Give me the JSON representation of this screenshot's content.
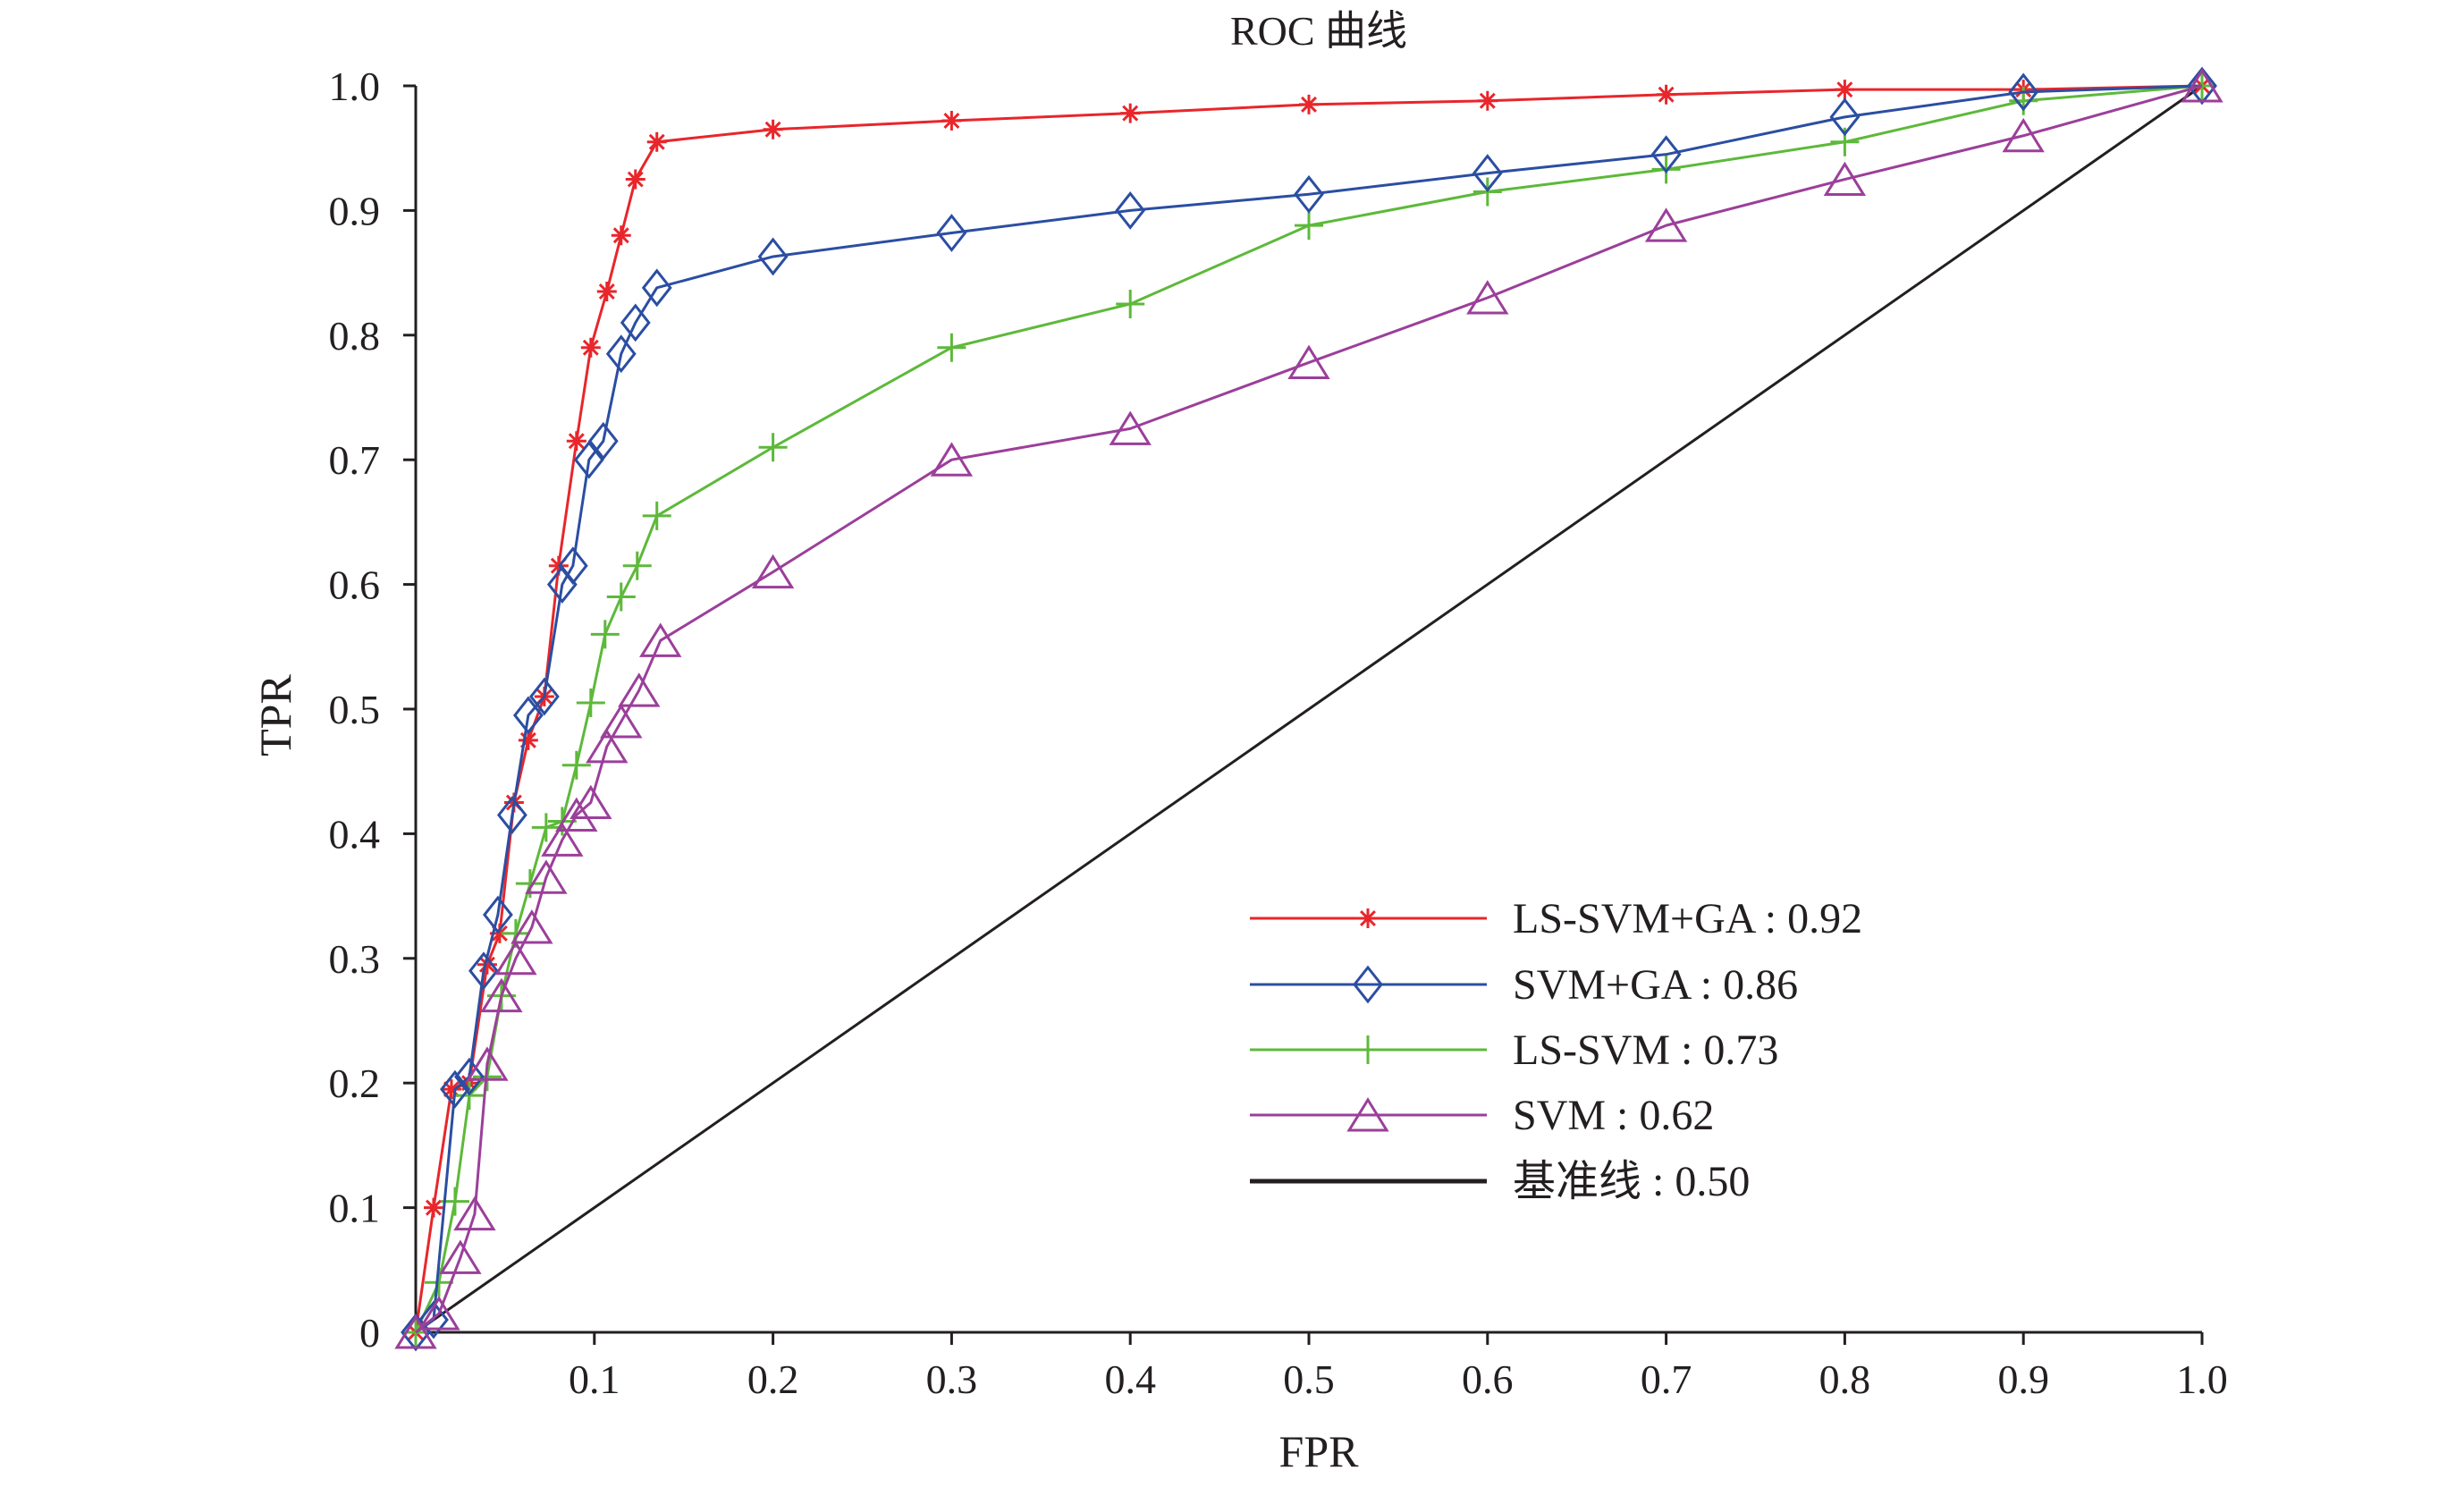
{
  "chart_data": {
    "type": "line",
    "title": "ROC 曲线",
    "xlabel": "FPR",
    "ylabel": "TPR",
    "xlim": [
      0,
      1
    ],
    "ylim": [
      0,
      1
    ],
    "x_ticks": [
      "0.1",
      "0.2",
      "0.3",
      "0.4",
      "0.5",
      "0.6",
      "0.7",
      "0.8",
      "0.9",
      "1.0"
    ],
    "y_ticks": [
      "0",
      "0.1",
      "0.2",
      "0.3",
      "0.4",
      "0.5",
      "0.6",
      "0.7",
      "0.8",
      "0.9",
      "1.0"
    ],
    "grid": false,
    "legend_position": "bottom-right",
    "series": [
      {
        "name": "LS-SVM+GA : 0.92",
        "color": "#e8262b",
        "marker": "asterisk",
        "points": [
          [
            0.0,
            0.0
          ],
          [
            0.01,
            0.1
          ],
          [
            0.02,
            0.195
          ],
          [
            0.03,
            0.2
          ],
          [
            0.04,
            0.295
          ],
          [
            0.047,
            0.32
          ],
          [
            0.055,
            0.425
          ],
          [
            0.063,
            0.475
          ],
          [
            0.072,
            0.51
          ],
          [
            0.08,
            0.615
          ],
          [
            0.09,
            0.715
          ],
          [
            0.098,
            0.79
          ],
          [
            0.107,
            0.835
          ],
          [
            0.115,
            0.88
          ],
          [
            0.123,
            0.925
          ],
          [
            0.135,
            0.955
          ],
          [
            0.2,
            0.965
          ],
          [
            0.3,
            0.972
          ],
          [
            0.4,
            0.978
          ],
          [
            0.5,
            0.985
          ],
          [
            0.6,
            0.988
          ],
          [
            0.7,
            0.993
          ],
          [
            0.8,
            0.997
          ],
          [
            0.9,
            0.997
          ],
          [
            1.0,
            1.0
          ]
        ]
      },
      {
        "name": "SVM+GA : 0.86",
        "color": "#2b4ea2",
        "marker": "diamond",
        "points": [
          [
            0.0,
            0.0
          ],
          [
            0.01,
            0.01
          ],
          [
            0.022,
            0.195
          ],
          [
            0.03,
            0.205
          ],
          [
            0.038,
            0.29
          ],
          [
            0.046,
            0.335
          ],
          [
            0.054,
            0.415
          ],
          [
            0.063,
            0.495
          ],
          [
            0.072,
            0.51
          ],
          [
            0.082,
            0.6
          ],
          [
            0.088,
            0.615
          ],
          [
            0.097,
            0.7
          ],
          [
            0.105,
            0.715
          ],
          [
            0.115,
            0.785
          ],
          [
            0.123,
            0.81
          ],
          [
            0.135,
            0.838
          ],
          [
            0.2,
            0.863
          ],
          [
            0.3,
            0.882
          ],
          [
            0.4,
            0.9
          ],
          [
            0.5,
            0.913
          ],
          [
            0.6,
            0.93
          ],
          [
            0.7,
            0.945
          ],
          [
            0.8,
            0.975
          ],
          [
            0.9,
            0.995
          ],
          [
            1.0,
            1.0
          ]
        ]
      },
      {
        "name": "LS-SVM : 0.73",
        "color": "#5db93a",
        "marker": "plus",
        "points": [
          [
            0.0,
            0.0
          ],
          [
            0.013,
            0.04
          ],
          [
            0.022,
            0.105
          ],
          [
            0.03,
            0.19
          ],
          [
            0.04,
            0.205
          ],
          [
            0.048,
            0.27
          ],
          [
            0.056,
            0.32
          ],
          [
            0.064,
            0.36
          ],
          [
            0.073,
            0.405
          ],
          [
            0.082,
            0.41
          ],
          [
            0.09,
            0.455
          ],
          [
            0.098,
            0.505
          ],
          [
            0.106,
            0.56
          ],
          [
            0.115,
            0.59
          ],
          [
            0.124,
            0.615
          ],
          [
            0.135,
            0.655
          ],
          [
            0.2,
            0.71
          ],
          [
            0.3,
            0.79
          ],
          [
            0.4,
            0.825
          ],
          [
            0.5,
            0.888
          ],
          [
            0.6,
            0.915
          ],
          [
            0.7,
            0.933
          ],
          [
            0.8,
            0.955
          ],
          [
            0.9,
            0.988
          ],
          [
            1.0,
            1.0
          ]
        ]
      },
      {
        "name": "SVM : 0.62",
        "color": "#9b3f9a",
        "marker": "triangle",
        "points": [
          [
            0.0,
            0.0
          ],
          [
            0.013,
            0.015
          ],
          [
            0.025,
            0.06
          ],
          [
            0.033,
            0.095
          ],
          [
            0.04,
            0.215
          ],
          [
            0.048,
            0.27
          ],
          [
            0.056,
            0.3
          ],
          [
            0.065,
            0.325
          ],
          [
            0.073,
            0.365
          ],
          [
            0.082,
            0.395
          ],
          [
            0.09,
            0.415
          ],
          [
            0.098,
            0.425
          ],
          [
            0.107,
            0.47
          ],
          [
            0.115,
            0.49
          ],
          [
            0.125,
            0.515
          ],
          [
            0.137,
            0.555
          ],
          [
            0.2,
            0.61
          ],
          [
            0.3,
            0.7
          ],
          [
            0.4,
            0.725
          ],
          [
            0.5,
            0.778
          ],
          [
            0.6,
            0.83
          ],
          [
            0.7,
            0.888
          ],
          [
            0.8,
            0.925
          ],
          [
            0.9,
            0.96
          ],
          [
            1.0,
            1.0
          ]
        ]
      },
      {
        "name": "基准线 : 0.50",
        "color": "#231f20",
        "marker": "none",
        "points": [
          [
            0.0,
            0.0
          ],
          [
            1.0,
            1.0
          ]
        ]
      }
    ]
  }
}
